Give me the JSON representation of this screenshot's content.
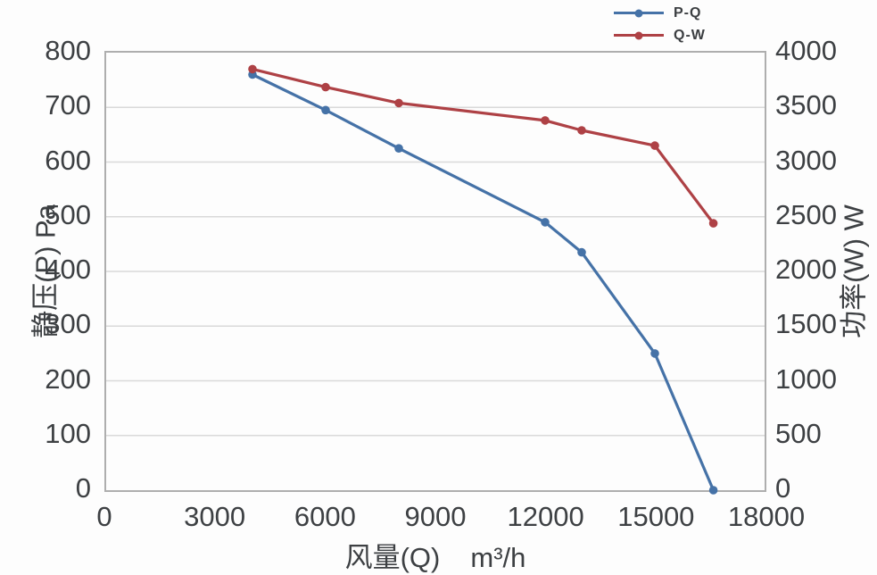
{
  "colors": {
    "text": "#3d4043",
    "grid": "#d9d9d9",
    "plot_border": "#aeaeae",
    "background": "#fdfdfd",
    "series_blue": "#4572A7",
    "series_red": "#AE4145"
  },
  "chart_data": {
    "type": "line",
    "title": "",
    "grid": "horizontal",
    "legend_position": "top-right",
    "x": {
      "label": "风量(Q)",
      "unit": "m³/h",
      "min": 0,
      "max": 18000,
      "ticks": [
        "0",
        "3000",
        "6000",
        "9000",
        "12000",
        "15000",
        "18000"
      ]
    },
    "y_left": {
      "label": "静压(P) Pa",
      "min": 0,
      "max": 800,
      "ticks": [
        "0",
        "100",
        "200",
        "300",
        "400",
        "500",
        "600",
        "700",
        "800"
      ]
    },
    "y_right": {
      "label": "功率(W) W",
      "min": 0,
      "max": 4000,
      "ticks": [
        "0",
        "500",
        "1000",
        "1500",
        "2000",
        "2500",
        "3000",
        "3500",
        "4000"
      ]
    },
    "series": [
      {
        "name": "P-Q",
        "color": "#4572A7",
        "axis": "left",
        "marker": "circle",
        "points": [
          [
            4000,
            760
          ],
          [
            6000,
            695
          ],
          [
            8000,
            625
          ],
          [
            12000,
            490
          ],
          [
            13000,
            435
          ],
          [
            15000,
            250
          ],
          [
            16600,
            0
          ]
        ]
      },
      {
        "name": "Q-W",
        "color": "#AE4145",
        "axis": "right",
        "marker": "circle",
        "points": [
          [
            4000,
            3850
          ],
          [
            6000,
            3685
          ],
          [
            8000,
            3540
          ],
          [
            12000,
            3380
          ],
          [
            13000,
            3290
          ],
          [
            15000,
            3150
          ],
          [
            16600,
            2440
          ]
        ]
      }
    ]
  }
}
